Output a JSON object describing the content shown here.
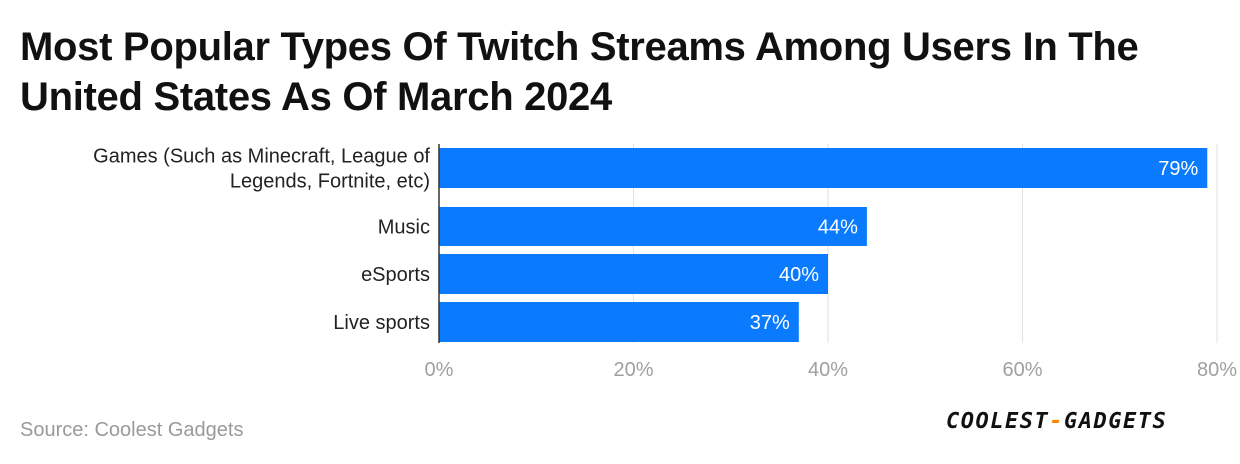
{
  "title": "Most Popular Types Of Twitch Streams Among Users In The United States As Of March 2024",
  "source": "Source: Coolest Gadgets",
  "logo": {
    "part1": "COOLEST",
    "dash": "-",
    "part2": "GADGETS"
  },
  "colors": {
    "bar": "#0a7bff",
    "grid": "#e2e2e2",
    "tick_text": "#a0a0a0",
    "category_text": "#222222",
    "value_label": "#ffffff"
  },
  "chart_data": {
    "type": "bar",
    "orientation": "horizontal",
    "categories": [
      [
        "Games (Such as Minecraft, League of",
        "Legends, Fortnite, etc)"
      ],
      [
        "Music"
      ],
      [
        "eSports"
      ],
      [
        "Live sports"
      ]
    ],
    "values": [
      79,
      44,
      40,
      37
    ],
    "value_labels": [
      "79%",
      "44%",
      "40%",
      "37%"
    ],
    "xlim": [
      0,
      80
    ],
    "xticks": [
      0,
      20,
      40,
      60,
      80
    ],
    "xtick_labels": [
      "0%",
      "20%",
      "40%",
      "60%",
      "80%"
    ],
    "grid": true,
    "legend": "none"
  }
}
